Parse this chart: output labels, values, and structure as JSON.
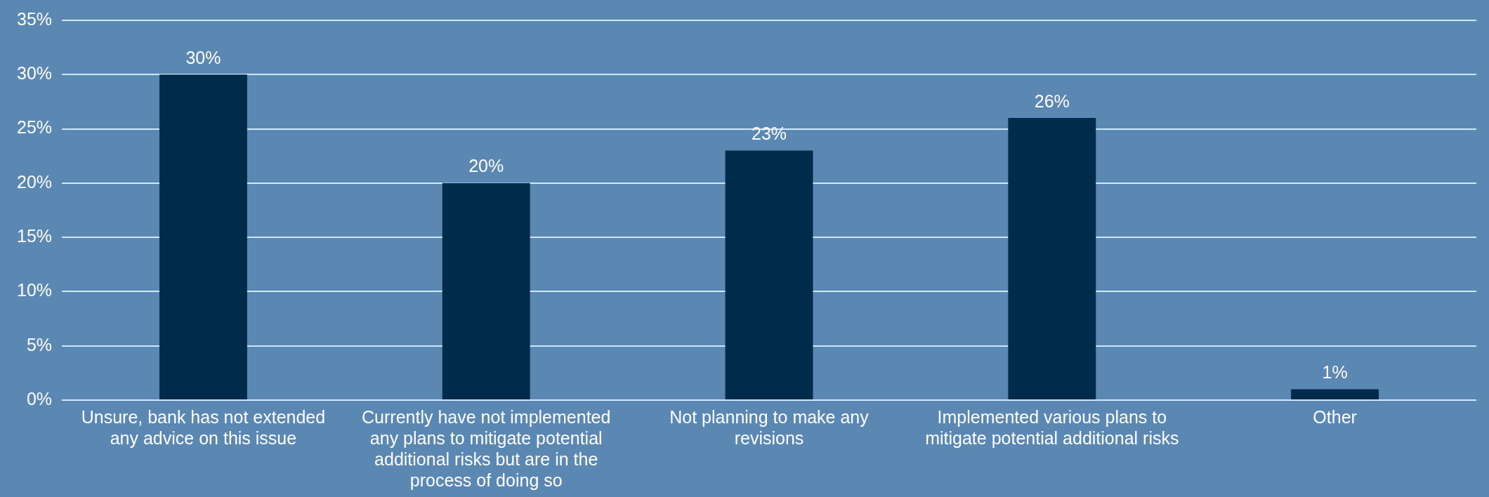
{
  "chart_data": {
    "type": "bar",
    "categories": [
      "Unsure, bank has not extended any advice on this issue",
      "Currently have not implemented any plans to mitigate potential additional risks but are in the process of doing so",
      "Not planning to make any revisions",
      "Implemented various plans to mitigate potential additional risks",
      "Other"
    ],
    "values": [
      30,
      20,
      23,
      26,
      1
    ],
    "value_labels": [
      "30%",
      "20%",
      "23%",
      "26%",
      "1%"
    ],
    "color": "#002b4a",
    "ylim": [
      0,
      35
    ],
    "yticks": [
      {
        "value": 0,
        "label": "0%"
      },
      {
        "value": 5,
        "label": "5%"
      },
      {
        "value": 10,
        "label": "10%"
      },
      {
        "value": 15,
        "label": "15%"
      },
      {
        "value": 20,
        "label": "20%"
      },
      {
        "value": 25,
        "label": "25%"
      },
      {
        "value": 30,
        "label": "30%"
      },
      {
        "value": 35,
        "label": "35%"
      }
    ],
    "grid": "y"
  }
}
